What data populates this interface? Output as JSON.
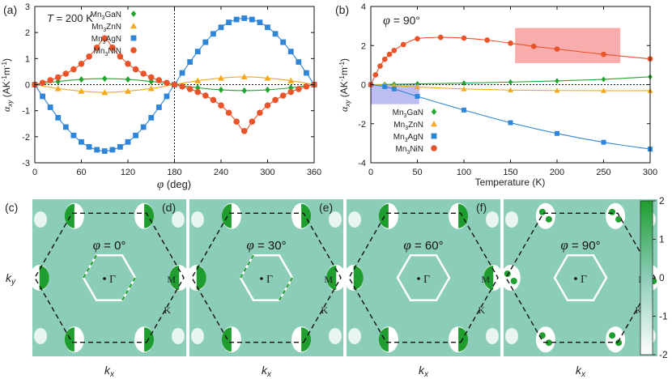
{
  "chart_data": [
    {
      "type": "line",
      "panel_label": "(a)",
      "annotation": "T = 200 K",
      "xlabel": "φ (deg)",
      "ylabel": "α_xy (AK⁻¹m⁻¹)",
      "xlim": [
        0,
        360
      ],
      "ylim": [
        -3,
        3
      ],
      "xticks": [
        0,
        60,
        120,
        180,
        240,
        300,
        360
      ],
      "yticks": [
        -3,
        -2,
        -1,
        0,
        1,
        2,
        3
      ],
      "legend_position": "top-center",
      "series": [
        {
          "name": "Mn3GaN",
          "sub": "3",
          "marker": "diamond",
          "color": "#22a52e",
          "x": [
            0,
            30,
            60,
            90,
            120,
            150,
            180,
            210,
            240,
            270,
            300,
            330,
            360
          ],
          "y": [
            0,
            0.12,
            0.2,
            0.23,
            0.2,
            0.12,
            0,
            -0.12,
            -0.2,
            -0.23,
            -0.2,
            -0.12,
            0
          ]
        },
        {
          "name": "Mn3ZnN",
          "sub": "3",
          "marker": "triangle",
          "color": "#f2a91f",
          "x": [
            0,
            30,
            60,
            90,
            120,
            150,
            180,
            210,
            240,
            270,
            300,
            330,
            360
          ],
          "y": [
            0,
            -0.15,
            -0.25,
            -0.3,
            -0.25,
            -0.15,
            0,
            0.15,
            0.25,
            0.3,
            0.25,
            0.15,
            0
          ]
        },
        {
          "name": "Mn3AgN",
          "sub": "3",
          "marker": "square",
          "color": "#2f86d8",
          "x": [
            0,
            10,
            20,
            30,
            40,
            50,
            60,
            70,
            80,
            90,
            100,
            110,
            120,
            130,
            140,
            150,
            160,
            170,
            180,
            190,
            200,
            210,
            220,
            230,
            240,
            250,
            260,
            270,
            280,
            290,
            300,
            310,
            320,
            330,
            340,
            350,
            360
          ],
          "y": [
            0,
            -0.45,
            -0.87,
            -1.27,
            -1.63,
            -1.95,
            -2.2,
            -2.39,
            -2.5,
            -2.55,
            -2.5,
            -2.39,
            -2.2,
            -1.95,
            -1.63,
            -1.27,
            -0.87,
            -0.45,
            0,
            0.45,
            0.87,
            1.27,
            1.63,
            1.95,
            2.2,
            2.39,
            2.5,
            2.55,
            2.5,
            2.39,
            2.2,
            1.95,
            1.63,
            1.27,
            0.87,
            0.45,
            0
          ]
        },
        {
          "name": "Mn3NiN",
          "sub": "3",
          "marker": "circle",
          "color": "#e8532a",
          "x": [
            0,
            10,
            20,
            30,
            40,
            50,
            60,
            70,
            80,
            90,
            100,
            110,
            120,
            130,
            140,
            150,
            160,
            170,
            180,
            190,
            200,
            210,
            220,
            230,
            240,
            250,
            260,
            270,
            280,
            290,
            300,
            310,
            320,
            330,
            340,
            350,
            360
          ],
          "y": [
            0,
            0.07,
            0.17,
            0.28,
            0.42,
            0.59,
            0.8,
            1.08,
            1.42,
            1.78,
            1.42,
            1.08,
            0.8,
            0.59,
            0.42,
            0.28,
            0.17,
            0.07,
            0,
            -0.07,
            -0.17,
            -0.28,
            -0.42,
            -0.59,
            -0.8,
            -1.08,
            -1.42,
            -1.78,
            -1.42,
            -1.08,
            -0.8,
            -0.59,
            -0.42,
            -0.28,
            -0.17,
            -0.07,
            0
          ]
        }
      ]
    },
    {
      "type": "line",
      "panel_label": "(b)",
      "annotation": "φ = 90°",
      "xlabel": "Temperature (K)",
      "ylabel": "α_xy (AK⁻¹m⁻¹)",
      "xlim": [
        0,
        300
      ],
      "ylim": [
        -4,
        4
      ],
      "xticks": [
        0,
        50,
        100,
        150,
        200,
        250,
        300
      ],
      "yticks": [
        -4,
        -2,
        0,
        2,
        4
      ],
      "legend_position": "bottom-left",
      "highlights": [
        {
          "color": "#f7a3a3",
          "x": [
            155,
            268
          ],
          "y": [
            1.1,
            2.9
          ]
        },
        {
          "color": "#b4b6f2",
          "x": [
            0,
            52
          ],
          "y": [
            -1.0,
            0
          ]
        }
      ],
      "series": [
        {
          "name": "Mn3GaN",
          "sub": "3",
          "marker": "diamond",
          "color": "#22a52e",
          "x": [
            0,
            15,
            25,
            50,
            100,
            150,
            200,
            250,
            300
          ],
          "y": [
            0,
            0.01,
            0.02,
            0.04,
            0.08,
            0.13,
            0.19,
            0.27,
            0.4
          ]
        },
        {
          "name": "Mn3ZnN",
          "sub": "3",
          "marker": "triangle",
          "color": "#f2a91f",
          "x": [
            0,
            15,
            25,
            50,
            100,
            150,
            200,
            250,
            300
          ],
          "y": [
            0,
            -0.02,
            -0.05,
            -0.12,
            -0.22,
            -0.28,
            -0.3,
            -0.31,
            -0.31
          ]
        },
        {
          "name": "Mn3AgN",
          "sub": "3",
          "marker": "square",
          "color": "#2f86d8",
          "x": [
            0,
            15,
            25,
            50,
            100,
            150,
            200,
            250,
            300
          ],
          "y": [
            0,
            -0.1,
            -0.22,
            -0.6,
            -1.3,
            -1.95,
            -2.5,
            -2.95,
            -3.3
          ]
        },
        {
          "name": "Mn3NiN",
          "sub": "3",
          "marker": "circle",
          "color": "#e8532a",
          "x": [
            0,
            5,
            10,
            15,
            20,
            25,
            35,
            50,
            75,
            100,
            125,
            150,
            175,
            200,
            250,
            300
          ],
          "y": [
            0,
            0.5,
            0.95,
            1.3,
            1.55,
            1.75,
            2.05,
            2.35,
            2.42,
            2.38,
            2.28,
            2.12,
            1.96,
            1.82,
            1.55,
            1.32
          ]
        }
      ]
    },
    {
      "type": "heatmap",
      "panel_labels": [
        "(c)",
        "(d)",
        "(e)",
        "(f)"
      ],
      "panel_angles": [
        "φ = 0°",
        "φ = 30°",
        "φ = 60°",
        "φ = 90°"
      ],
      "xlabel": "k_x",
      "ylabel": "k_y",
      "point_labels": [
        "Γ",
        "M",
        "K"
      ],
      "colorbar": {
        "min": -2,
        "max": 2,
        "ticks": [
          2,
          1,
          0,
          -1,
          -2
        ],
        "low_color": "#ffffff",
        "mid_color": "#8ccdb9",
        "high_color": "#1f9e2f"
      }
    }
  ]
}
